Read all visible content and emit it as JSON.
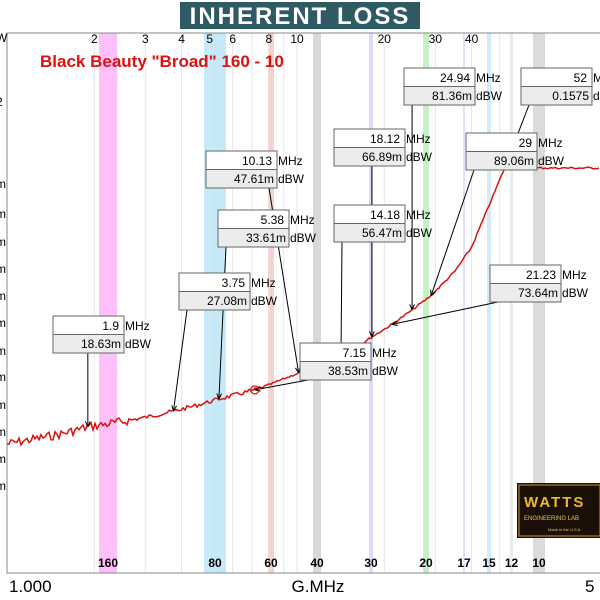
{
  "chart_data": {
    "type": "line",
    "title": "INHERENT LOSS",
    "subtitle": "Black Beauty \"Broad\" 160 - 10",
    "xlabel": "G.MHz",
    "x_scale": "log",
    "xlim": [
      1.0,
      50
    ],
    "x_min_label": "1.000",
    "x_max_label": "5",
    "top_tick_labels": [
      "2",
      "3",
      "4",
      "5",
      "6",
      "8",
      "10",
      "20",
      "30",
      "40"
    ],
    "left_partial_labels": [
      "W",
      "2",
      "m",
      "m",
      "m",
      "m",
      "m",
      "m",
      "m",
      "m",
      "m",
      "m",
      "m",
      "m"
    ],
    "bands": [
      {
        "label": "160",
        "color": "#ff9cf5"
      },
      {
        "label": "80",
        "color": "#a8ddf5"
      },
      {
        "label": "60",
        "color": "#f4b8b0"
      },
      {
        "label": "40",
        "color": "#c4c4c4"
      },
      {
        "label": "30",
        "color": "#c8c8ff"
      },
      {
        "label": "20",
        "color": "#a8e8a8"
      },
      {
        "label": "17",
        "color": "#cfcfff"
      },
      {
        "label": "15",
        "color": "#b8e0f8"
      },
      {
        "label": "12",
        "color": "#e0e0e0"
      },
      {
        "label": "10",
        "color": "#c8c8c8"
      }
    ],
    "series": [
      {
        "unit": "dBW",
        "color": "#dd1010",
        "x": [
          1.0,
          1.5,
          1.9,
          2.5,
          3.0,
          3.75,
          4.5,
          5.38,
          6.0,
          7.15,
          8.0,
          10.13,
          12.0,
          14.18,
          16.0,
          18.12,
          21.23,
          24.94,
          29.0,
          35.0,
          40.0,
          52.0
        ],
        "y": [
          0.0095,
          0.0145,
          0.01863,
          0.0215,
          0.0238,
          0.02708,
          0.0302,
          0.03361,
          0.0355,
          0.03853,
          0.0412,
          0.04761,
          0.0524,
          0.05647,
          0.0612,
          0.06689,
          0.07364,
          0.08136,
          0.08906,
          0.102,
          0.115,
          0.1575
        ]
      }
    ],
    "markers": [
      {
        "freq": "1.9",
        "freq_unit": "MHz",
        "value": "18.63m",
        "value_unit": "dBW"
      },
      {
        "freq": "3.75",
        "freq_unit": "MHz",
        "value": "27.08m",
        "value_unit": "dBW"
      },
      {
        "freq": "5.38",
        "freq_unit": "MHz",
        "value": "33.61m",
        "value_unit": "dBW"
      },
      {
        "freq": "7.15",
        "freq_unit": "MHz",
        "value": "38.53m",
        "value_unit": "dBW"
      },
      {
        "freq": "10.13",
        "freq_unit": "MHz",
        "value": "47.61m",
        "value_unit": "dBW"
      },
      {
        "freq": "14.18",
        "freq_unit": "MHz",
        "value": "56.47m",
        "value_unit": "dBW"
      },
      {
        "freq": "18.12",
        "freq_unit": "MHz",
        "value": "66.89m",
        "value_unit": "dBW"
      },
      {
        "freq": "21.23",
        "freq_unit": "MHz",
        "value": "73.64m",
        "value_unit": "dBW"
      },
      {
        "freq": "24.94",
        "freq_unit": "MHz",
        "value": "81.36m",
        "value_unit": "dBW"
      },
      {
        "freq": "29",
        "freq_unit": "MHz",
        "value": "89.06m",
        "value_unit": "dBW"
      },
      {
        "freq": "52",
        "freq_unit": "MHz",
        "value": "0.1575",
        "value_unit": "dBW"
      }
    ],
    "grid": true
  },
  "logo": {
    "brand": "WATTS",
    "tagline": "ENGINEERING LAB",
    "small": "Made in the U.S.A."
  }
}
